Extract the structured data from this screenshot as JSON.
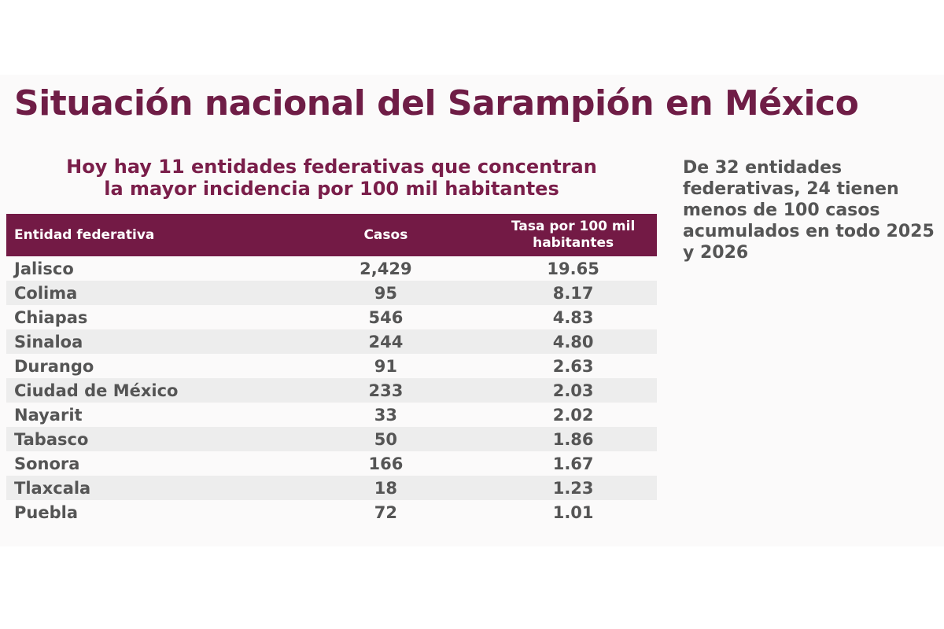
{
  "title": "Situación nacional del Sarampión en México",
  "subtitle": {
    "line1": "Hoy hay 11 entidades federativas que concentran",
    "line2": "la mayor incidencia por 100 mil habitantes"
  },
  "table": {
    "headers": [
      "Entidad federativa",
      "Casos",
      "Tasa por 100 mil habitantes"
    ],
    "rows": [
      [
        "Jalisco",
        "2,429",
        "19.65"
      ],
      [
        "Colima",
        "95",
        "8.17"
      ],
      [
        "Chiapas",
        "546",
        "4.83"
      ],
      [
        "Sinaloa",
        "244",
        "4.80"
      ],
      [
        "Durango",
        "91",
        "2.63"
      ],
      [
        "Ciudad de México",
        "233",
        "2.03"
      ],
      [
        "Nayarit",
        "33",
        "2.02"
      ],
      [
        "Tabasco",
        "50",
        "1.86"
      ],
      [
        "Sonora",
        "166",
        "1.67"
      ],
      [
        "Tlaxcala",
        "18",
        "1.23"
      ],
      [
        "Puebla",
        "72",
        "1.01"
      ]
    ]
  },
  "side_note": "De 32 entidades federativas, 24 tienen menos de 100 casos acumulados en todo 2025 y 2026",
  "colors": {
    "brand": "#731a45",
    "text": "#555555",
    "row_alt": "#ededed"
  }
}
